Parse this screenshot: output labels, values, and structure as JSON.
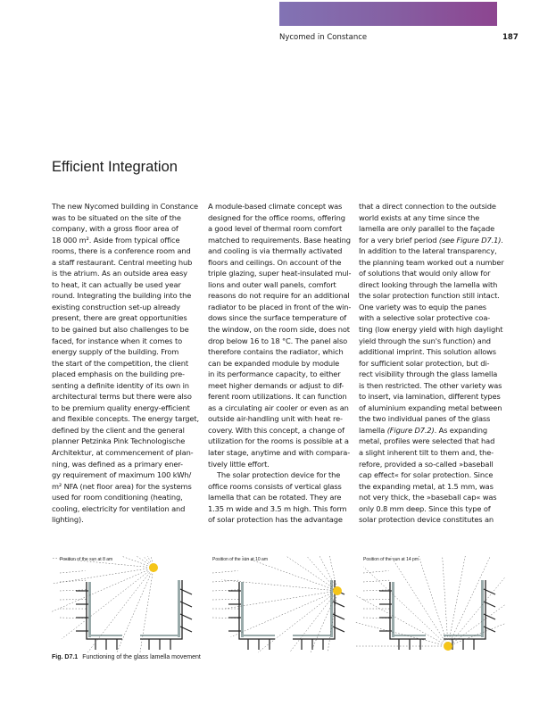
{
  "header": {
    "running_title": "Nycomed in Constance",
    "page_number": "187",
    "bar_gradient": [
      "#8273b4",
      "#8d4590"
    ]
  },
  "title": "Efficient Integration",
  "columns": [
    [
      "The new Nycomed building in Constance",
      "was to be situated on the site of the",
      "company, with a gross floor area of",
      "18 000 m². Aside from typical office",
      "rooms, there is a conference room and",
      "a staff restaurant. Central meeting hub",
      "is the atrium. As an outside area easy",
      "to heat, it can actually be used year",
      "round. Integrating the building into the",
      "existing construction set-up already",
      "present, there are great opportunities",
      "to be gained but also challenges to be",
      "faced, for instance when it comes to",
      "energy supply of the building. From",
      "the start of the competition, the client",
      "placed emphasis on the building pre-",
      "senting a definite identity of its own in",
      "architectural terms but there were also",
      "to be premium quality energy-efficient",
      "and flexible concepts. The energy target,",
      "defined by the client and the general",
      "planner Petzinka Pink Technologische",
      "Architektur, at commencement of plan-",
      "ning, was defined as a primary ener-",
      "gy requirement of maximum 100 kWh/",
      "m² NFA (net floor area) for the systems",
      "used for room conditioning (heating,",
      "cooling, electricity for ventilation and",
      "lighting)."
    ],
    [
      "A module-based climate concept was",
      "designed for the office rooms, offering",
      "a good level of thermal room comfort",
      "matched to requirements. Base heating",
      "and cooling is via thermally activated",
      "floors and ceilings. On account of the",
      "triple glazing, super heat-insulated mul-",
      "lions and outer wall panels, comfort",
      "reasons do not require for an additional",
      "radiator to be placed in front of the win-",
      "dows since the surface temperature of",
      "the window, on the room side, does not",
      "drop below 16 to 18 °C. The panel also",
      "therefore contains the radiator, which",
      "can be expanded module by module",
      "in its performance capacity, to either",
      "meet higher demands or adjust to dif-",
      "ferent room utilizations. It can function",
      "as a circulating air cooler or even as an",
      "outside air-handling unit with heat re-",
      "covery. With this concept, a change of",
      "utilization for the rooms is possible at a",
      "later stage, anytime and with compara-",
      "tively little effort.",
      "The solar protection device for the",
      "office rooms consists of vertical glass",
      "lamella that can be rotated. They are",
      "1.35 m wide and 3.5 m high. This form",
      "of solar protection has the advantage"
    ],
    [
      "that a direct connection to the outside",
      "world exists at any time since the",
      "lamella are only parallel to the façade",
      "for a very brief period (see Figure D7.1).",
      "In addition to the lateral transparency,",
      "the planning team worked out a number",
      "of solutions that would only allow for",
      "direct looking through the lamella with",
      "the solar protection function still intact.",
      "One variety was to equip the panes",
      "with a selective solar protective coa-",
      "ting (low energy yield with high daylight",
      "yield through the sun's function) and",
      "additional imprint. This solution allows",
      "for sufficient solar protection, but di-",
      "rect visibility through the glass lamella",
      "is then restricted. The other variety was",
      "to insert, via lamination, different types",
      "of aluminium expanding metal between",
      "the two individual panes of the glass",
      "lamella (Figure D7.2). As expanding",
      "metal, profiles were selected that had",
      "a slight inherent tilt to them and, the-",
      "refore, provided a so-called »baseball",
      "cap effect« for solar protection. Since",
      "the expanding metal, at 1.5 mm, was",
      "not very thick, the »baseball cap« was",
      "only 0.8 mm deep. Since this type of",
      "solar protection device constitutes an"
    ]
  ],
  "figure": {
    "panels": [
      {
        "label": "Position of the sun at 8 am"
      },
      {
        "label": "Position of the sun at 10 am"
      },
      {
        "label": "Position of the sun at 14 pm"
      }
    ],
    "sun_color": "#f5c518",
    "caption_number": "Fig. D7.1",
    "caption_text": "Functioning of the glass lamella movement"
  }
}
